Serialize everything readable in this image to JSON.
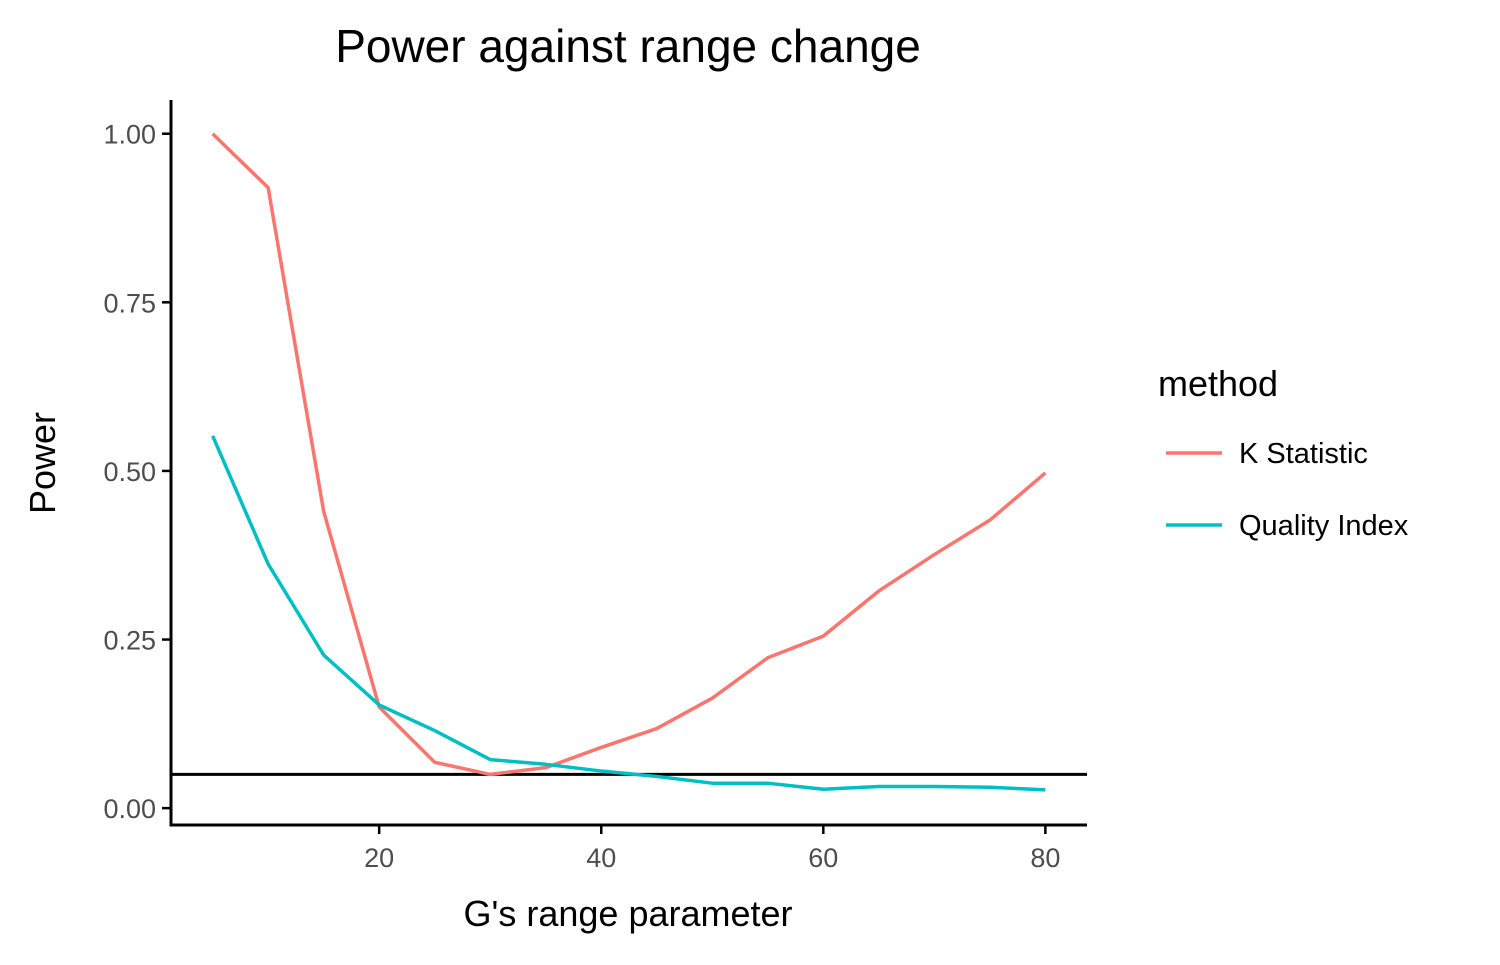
{
  "chart_data": {
    "type": "line",
    "title": "Power against range change",
    "xlabel": "G's range parameter",
    "ylabel": "Power",
    "x": [
      5,
      10,
      15,
      20,
      25,
      30,
      35,
      40,
      45,
      50,
      55,
      60,
      65,
      70,
      75,
      80
    ],
    "xlim": [
      1.25,
      83.75
    ],
    "ylim": [
      -0.025,
      1.05
    ],
    "x_ticks": [
      20,
      40,
      60,
      80
    ],
    "x_tick_labels": [
      "20",
      "40",
      "60",
      "80"
    ],
    "y_ticks": [
      0,
      0.25,
      0.5,
      0.75,
      1.0
    ],
    "y_tick_labels": [
      "0.00",
      "0.25",
      "0.50",
      "0.75",
      "1.00"
    ],
    "reference_line": {
      "y": 0.05,
      "color": "#000000"
    },
    "legend": {
      "title": "method",
      "position": "right"
    },
    "grid": false,
    "series": [
      {
        "name": "K Statistic",
        "color": "#F8766D",
        "values": [
          1.0,
          0.92,
          0.44,
          0.15,
          0.068,
          0.05,
          0.06,
          0.09,
          0.118,
          0.163,
          0.223,
          0.255,
          0.322,
          0.376,
          0.427,
          0.497
        ]
      },
      {
        "name": "Quality Index",
        "color": "#00BFC4",
        "values": [
          0.552,
          0.362,
          0.227,
          0.153,
          0.115,
          0.072,
          0.065,
          0.055,
          0.047,
          0.037,
          0.037,
          0.028,
          0.032,
          0.032,
          0.031,
          0.027
        ]
      }
    ]
  }
}
